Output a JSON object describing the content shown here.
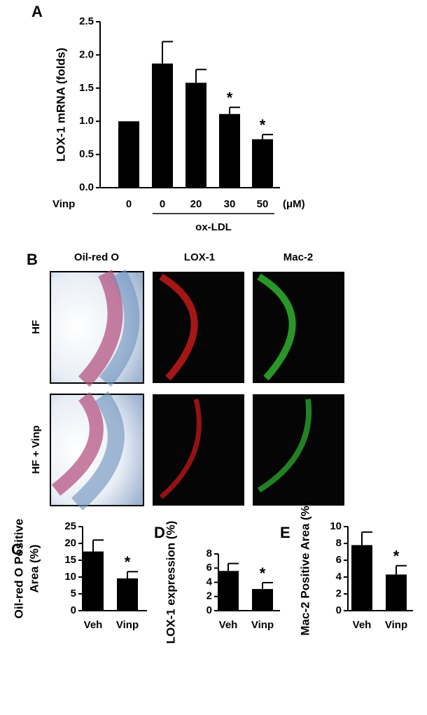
{
  "chart_data": [
    {
      "type": "bar",
      "panel": "A",
      "ylabel": "LOX-1 mRNA (folds)",
      "row_label": "Vinp",
      "x_unit": "(μM)",
      "group_label": "ox-LDL",
      "categories": [
        "0",
        "0",
        "20",
        "30",
        "50"
      ],
      "values": [
        1.0,
        1.87,
        1.58,
        1.11,
        0.73
      ],
      "errors": [
        0,
        0.33,
        0.2,
        0.1,
        0.07
      ],
      "markers": [
        null,
        null,
        null,
        "*",
        "*"
      ],
      "color": "#000000",
      "ylim": [
        0,
        2.5
      ],
      "yticks": [
        {
          "value": 0,
          "label": "0.0"
        },
        0.5,
        {
          "value": 1,
          "label": "1.0"
        },
        1.5,
        {
          "value": 2,
          "label": "2.0"
        },
        2.5
      ]
    },
    {
      "type": "bar",
      "panel": "C",
      "ylabel": [
        "Oil-red O Positive",
        "Area (%)"
      ],
      "categories": [
        "Veh",
        "Vinp"
      ],
      "values": [
        17.6,
        9.6
      ],
      "errors": [
        3.4,
        2.0
      ],
      "markers": [
        null,
        "*"
      ],
      "color": "#000000",
      "ylim": [
        0,
        25
      ],
      "yticks": [
        0,
        5,
        10,
        15,
        20,
        25
      ]
    },
    {
      "type": "bar",
      "panel": "D",
      "ylabel": "LOX-1 expression (%)",
      "categories": [
        "Veh",
        "Vinp"
      ],
      "values": [
        5.6,
        3.05
      ],
      "errors": [
        1.05,
        0.9
      ],
      "markers": [
        null,
        "*"
      ],
      "color": "#000000",
      "ylim": [
        0,
        8
      ],
      "yticks": [
        0,
        2,
        4,
        6,
        8
      ]
    },
    {
      "type": "bar",
      "panel": "E",
      "ylabel": "Mac-2 Positive Area (%)",
      "categories": [
        "Veh",
        "Vinp"
      ],
      "values": [
        7.8,
        4.3
      ],
      "errors": [
        1.55,
        1.05
      ],
      "markers": [
        null,
        "*"
      ],
      "color": "#000000",
      "ylim": [
        0,
        10
      ],
      "yticks": [
        0,
        2,
        4,
        6,
        8,
        10
      ]
    }
  ],
  "panel_b": {
    "panel": "B",
    "columns": [
      "Oil-red O",
      "LOX-1",
      "Mac-2"
    ],
    "rows": [
      "HF",
      "HF + Vinp"
    ]
  }
}
